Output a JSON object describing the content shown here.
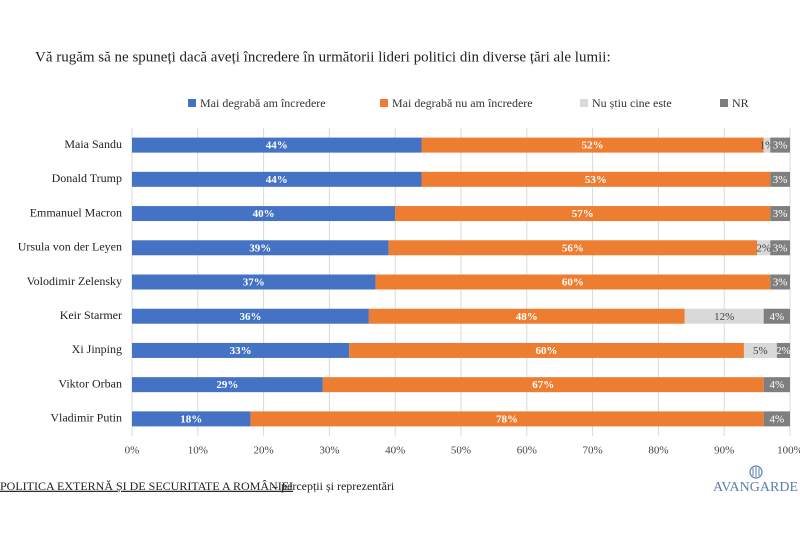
{
  "chart_data": {
    "type": "stacked-barh",
    "title": "Vă rugăm să ne spuneți dacă aveți încredere în următorii lideri politici din diverse țări ale lumii:",
    "categories": [
      "Maia Sandu",
      "Donald Trump",
      "Emmanuel Macron",
      "Ursula von der Leyen",
      "Volodimir Zelensky",
      "Keir Starmer",
      "Xi Jinping",
      "Viktor Orban",
      "Vladimir Putin"
    ],
    "series": [
      {
        "name": "Mai degrabă am încredere",
        "color": "#4472c4",
        "values": [
          44,
          44,
          40,
          39,
          37,
          36,
          33,
          29,
          18
        ],
        "value_labels": [
          "44%",
          "44%",
          "40%",
          "39%",
          "37%",
          "36%",
          "33%",
          "29%",
          "18%"
        ]
      },
      {
        "name": "Mai degrabă nu am încredere",
        "color": "#ed7d31",
        "values": [
          52,
          53,
          57,
          56,
          60,
          48,
          60,
          67,
          78
        ],
        "value_labels": [
          "52%",
          "53%",
          "57%",
          "56%",
          "60%",
          "48%",
          "60%",
          "67%",
          "78%"
        ]
      },
      {
        "name": "Nu știu cine este",
        "color": "#d9d9d9",
        "values": [
          1,
          null,
          null,
          2,
          null,
          12,
          5,
          null,
          null
        ],
        "value_labels": [
          "1%",
          null,
          null,
          "2%",
          null,
          "12%",
          "5%",
          null,
          null
        ]
      },
      {
        "name": "NR",
        "color": "#7f7f7f",
        "values": [
          3,
          3,
          3,
          3,
          3,
          4,
          2,
          4,
          4
        ],
        "value_labels": [
          "3%",
          "3%",
          "3%",
          "3%",
          "3%",
          "4%",
          "2%",
          "4%",
          "4%"
        ]
      }
    ],
    "xlim": [
      0,
      100
    ],
    "xticks": [
      {
        "value": 0,
        "label": "0%"
      },
      {
        "value": 10,
        "label": "10%"
      },
      {
        "value": 20,
        "label": "20%"
      },
      {
        "value": 30,
        "label": "30%"
      },
      {
        "value": 40,
        "label": "40%"
      },
      {
        "value": 50,
        "label": "50%"
      },
      {
        "value": 60,
        "label": "60%"
      },
      {
        "value": 70,
        "label": "70%"
      },
      {
        "value": 80,
        "label": "80%"
      },
      {
        "value": 90,
        "label": "90%"
      },
      {
        "value": 100,
        "label": "100%"
      }
    ],
    "grid": true,
    "legend": "top"
  },
  "footer": {
    "title": "POLITICA EXTERNĂ ȘI DE SECURITATE A ROMÂNIEI",
    "subtitle": "– percepții și reprezentări",
    "logo": "AVANGARDE"
  }
}
